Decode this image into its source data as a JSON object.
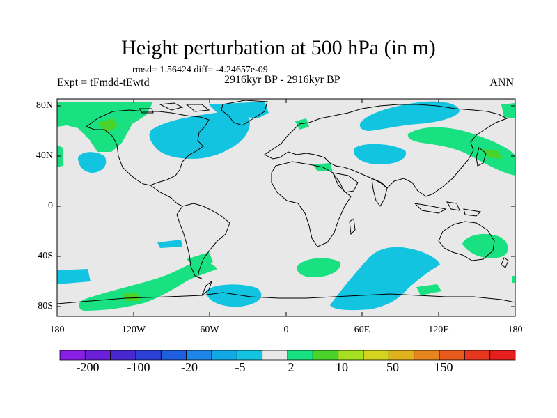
{
  "title": "Height perturbation at 500 hPa (in m)",
  "stats": "rmsd= 1.56424 diff= -4.24657e-09",
  "experiment": "Expt = tFmdd-tEwtd",
  "period": "2916kyr BP - 2916kyr BP",
  "season": "ANN",
  "lat_labels": [
    "80N",
    "40N",
    "0",
    "40S",
    "80S"
  ],
  "lon_labels": [
    "180",
    "120W",
    "60W",
    "0",
    "60E",
    "120E",
    "180"
  ],
  "colorbar": {
    "labels": [
      "-200",
      "-100",
      "-20",
      "-5",
      "2",
      "10",
      "50",
      "150"
    ],
    "colors": [
      "#8a1ee6",
      "#6a1fd9",
      "#4a28cf",
      "#2a3fd6",
      "#1e5fe0",
      "#1e86e6",
      "#10a9e6",
      "#12c4e0",
      "#e8e8e8",
      "#19e080",
      "#4ad42a",
      "#a6e020",
      "#d4d41e",
      "#e0b21e",
      "#e6861e",
      "#e85a1e",
      "#e6361e",
      "#e61e1e"
    ]
  },
  "colors": {
    "ocean_background": "#e8e8e8",
    "positive": "#19e080",
    "negative": "#12c4e0"
  }
}
